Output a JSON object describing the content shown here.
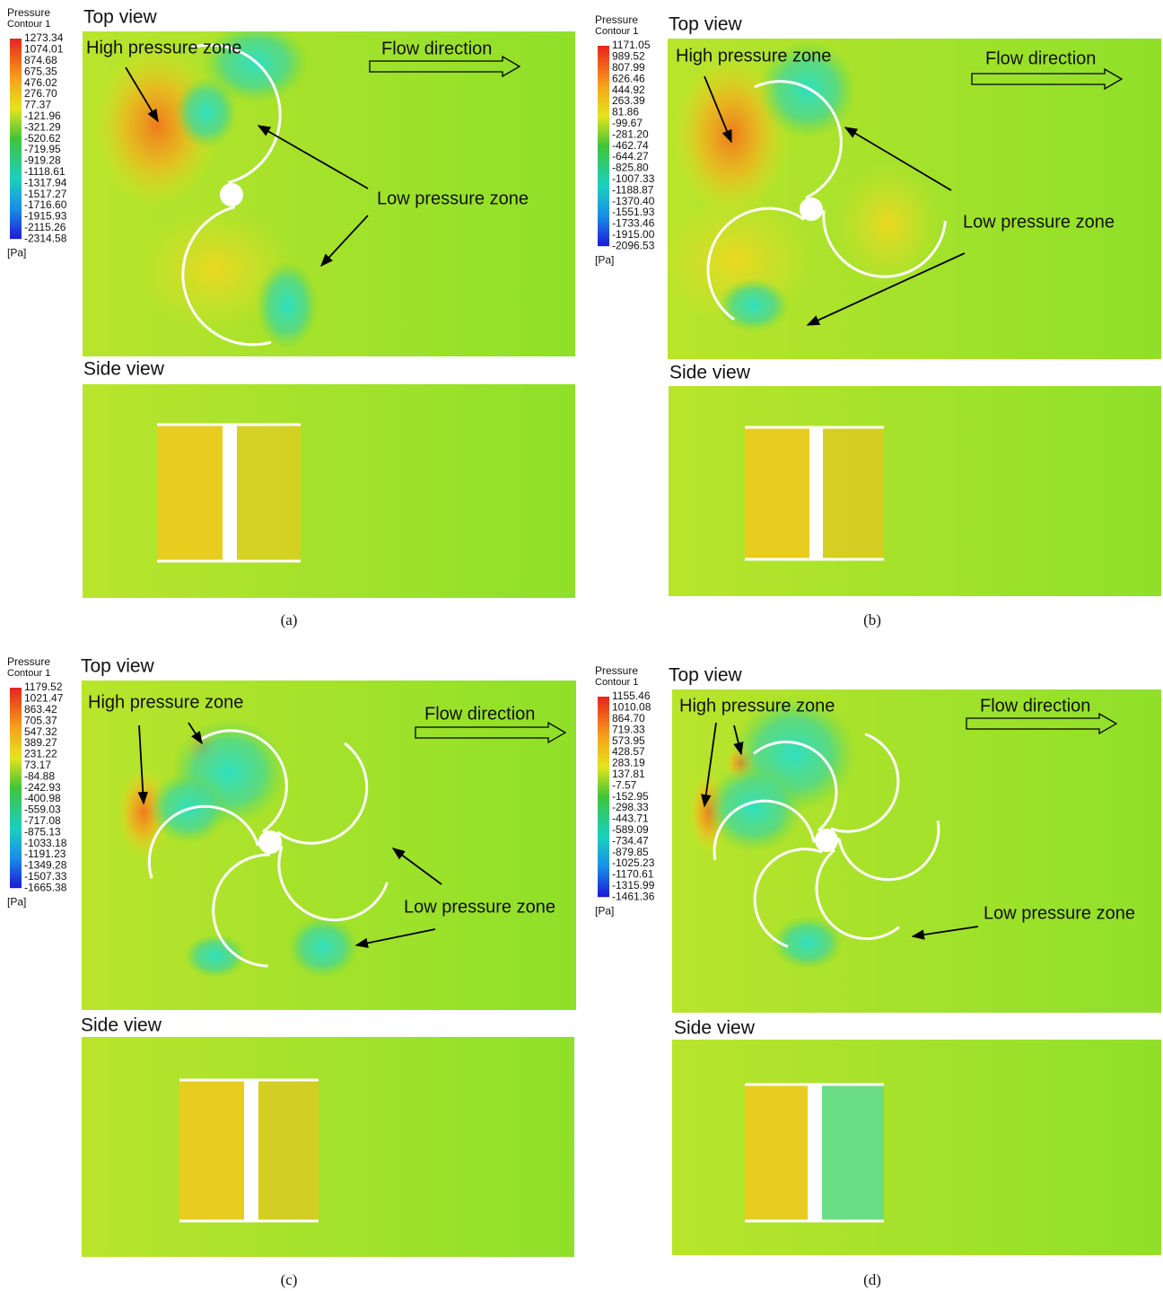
{
  "panels": [
    {
      "caption": "(a)",
      "legend": {
        "title": "Pressure",
        "subtitle": "Contour 1",
        "unit": "[Pa]",
        "values": [
          "1273.34",
          "1074.01",
          "874.68",
          "675.35",
          "476.02",
          "276.70",
          "77.37",
          "-121.96",
          "-321.29",
          "-520.62",
          "-719.95",
          "-919.28",
          "-1118.61",
          "-1317.94",
          "-1517.27",
          "-1716.60",
          "-1915.93",
          "-2115.26",
          "-2314.58"
        ]
      },
      "top_view": {
        "title": "Top view",
        "high": "High pressure zone",
        "flow": "Flow direction",
        "low": "Low pressure zone"
      },
      "side_view": {
        "title": "Side view"
      }
    },
    {
      "caption": "(b)",
      "legend": {
        "title": "Pressure",
        "subtitle": "Contour 1",
        "unit": "[Pa]",
        "values": [
          "1171.05",
          "989.52",
          "807.99",
          "626.46",
          "444.92",
          "263.39",
          "81.86",
          "-99.67",
          "-281.20",
          "-462.74",
          "-644.27",
          "-825.80",
          "-1007.33",
          "-1188.87",
          "-1370.40",
          "-1551.93",
          "-1733.46",
          "-1915.00",
          "-2096.53"
        ]
      },
      "top_view": {
        "title": "Top view",
        "high": "High pressure zone",
        "flow": "Flow direction",
        "low": "Low pressure zone"
      },
      "side_view": {
        "title": "Side view"
      }
    },
    {
      "caption": "(c)",
      "legend": {
        "title": "Pressure",
        "subtitle": "Contour 1",
        "unit": "[Pa]",
        "values": [
          "1179.52",
          "1021.47",
          "863.42",
          "705.37",
          "547.32",
          "389.27",
          "231.22",
          "73.17",
          "-84.88",
          "-242.93",
          "-400.98",
          "-559.03",
          "-717.08",
          "-875.13",
          "-1033.18",
          "-1191.23",
          "-1349.28",
          "-1507.33",
          "-1665.38"
        ]
      },
      "top_view": {
        "title": "Top view",
        "high": "High pressure zone",
        "flow": "Flow direction",
        "low": "Low pressure zone"
      },
      "side_view": {
        "title": "Side view"
      }
    },
    {
      "caption": "(d)",
      "legend": {
        "title": "Pressure",
        "subtitle": "Contour 1",
        "unit": "[Pa]",
        "values": [
          "1155.46",
          "1010.08",
          "864.70",
          "719.33",
          "573.95",
          "428.57",
          "283.19",
          "137.81",
          "-7.57",
          "-152.95",
          "-298.33",
          "-443.71",
          "-589.09",
          "-734.47",
          "-879.85",
          "-1025.23",
          "-1170.61",
          "-1315.99",
          "-1461.36"
        ]
      },
      "top_view": {
        "title": "Top view",
        "high": "High pressure zone",
        "flow": "Flow direction",
        "low": "Low pressure zone"
      },
      "side_view": {
        "title": "Side view"
      }
    }
  ]
}
